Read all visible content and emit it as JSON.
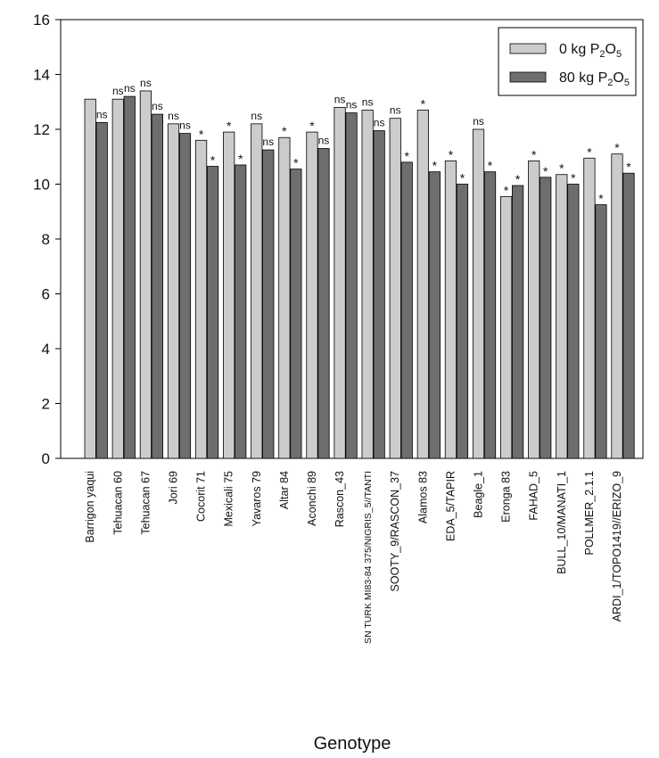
{
  "chart_data": {
    "type": "bar",
    "title": "",
    "xlabel": "Genotype",
    "ylabel": "",
    "ylim": [
      0,
      16
    ],
    "yticks": [
      0,
      2,
      4,
      6,
      8,
      10,
      12,
      14,
      16
    ],
    "grid": false,
    "legend_position": "top-right",
    "categories": [
      "Barrigon yaqui",
      "Tehuacan 60",
      "Tehuacan 67",
      "Jori 69",
      "Cocorit 71",
      "Mexicali 75",
      "Yavaros 79",
      "Altar 84",
      "Aconchi 89",
      "Rascon_43",
      "SN TURK MI83-84 375/NIGRIS_5//TANTI",
      "SOOTY_9/RASCON_37",
      "Alamos 83",
      "EDA_5/TAPIR",
      "Beagle_1",
      "Eronga 83",
      "FAHAD_5",
      "BULL_10/MANATI_1",
      "POLLMER_2.1.1",
      "ARDI_1/TOPO1419//ERIZO_9"
    ],
    "series": [
      {
        "name_parts": [
          "0 kg P",
          "2",
          "O",
          "5"
        ],
        "color": "#cccccc",
        "values": [
          13.1,
          13.1,
          13.4,
          12.2,
          11.6,
          11.9,
          12.2,
          11.7,
          11.9,
          12.8,
          12.7,
          12.4,
          12.7,
          10.85,
          12.0,
          9.55,
          10.85,
          10.35,
          10.95,
          11.1
        ]
      },
      {
        "name_parts": [
          "80 kg P",
          "2",
          "O",
          "5"
        ],
        "color": "#6e6e6e",
        "values": [
          12.25,
          13.2,
          12.55,
          11.85,
          10.65,
          10.7,
          11.25,
          10.55,
          11.3,
          12.6,
          11.95,
          10.8,
          10.45,
          10.0,
          10.45,
          9.95,
          10.25,
          10.0,
          9.25,
          10.4
        ]
      }
    ],
    "significance": [
      [
        "",
        "ns"
      ],
      [
        "ns",
        "ns"
      ],
      [
        "ns",
        "ns"
      ],
      [
        "ns",
        "ns"
      ],
      [
        "*",
        "*"
      ],
      [
        "*",
        "*"
      ],
      [
        "ns",
        "ns"
      ],
      [
        "*",
        "*"
      ],
      [
        "*",
        "ns"
      ],
      [
        "ns",
        "ns"
      ],
      [
        "ns",
        "ns"
      ],
      [
        "ns",
        "*"
      ],
      [
        "*",
        "*"
      ],
      [
        "*",
        "*"
      ],
      [
        "ns",
        "*"
      ],
      [
        "*",
        "*"
      ],
      [
        "*",
        "*"
      ],
      [
        "*",
        "*"
      ],
      [
        "*",
        "*"
      ],
      [
        "*",
        "*"
      ]
    ]
  }
}
